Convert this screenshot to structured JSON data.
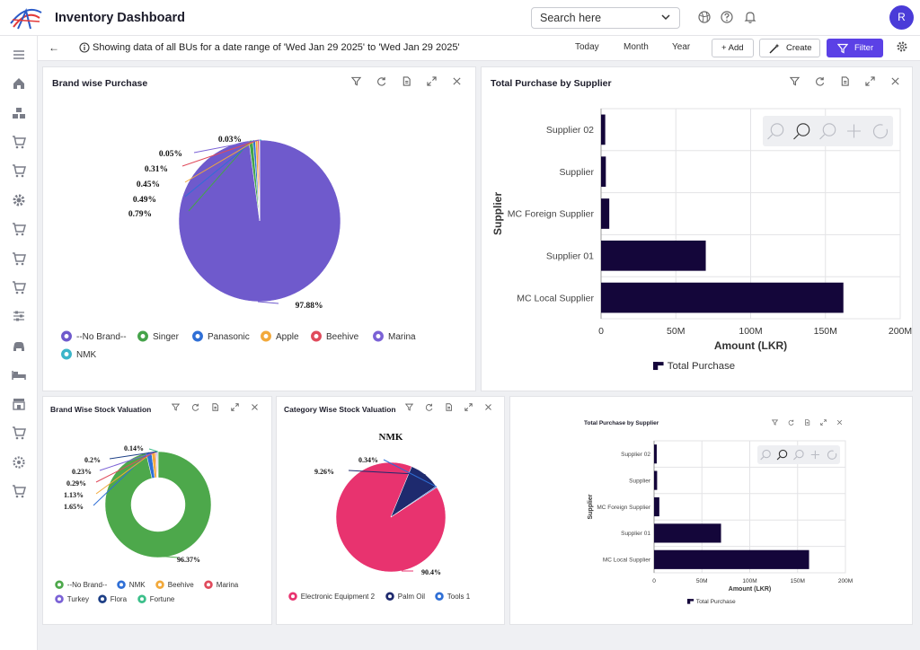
{
  "app": {
    "title": "Inventory Dashboard"
  },
  "header": {
    "search_placeholder": "Search here",
    "avatar_initial": "R"
  },
  "subbar": {
    "info": "Showing data of all BUs for a date range of 'Wed Jan 29 2025' to 'Wed Jan 29 2025'",
    "ranges": [
      "Today",
      "Month",
      "Year"
    ],
    "add_label": "+ Add",
    "create_label": "Create",
    "filter_label": "Filter"
  },
  "panels": {
    "brand_purchase": {
      "title": "Brand wise Purchase"
    },
    "supplier_purchase": {
      "title": "Total Purchase by Supplier"
    },
    "brand_stock": {
      "title": "Brand Wise Stock Valuation"
    },
    "category_stock": {
      "title": "Category Wise Stock Valuation"
    },
    "supplier_purchase_small": {
      "title": "Total Purchase by Supplier"
    }
  },
  "chart_data": [
    {
      "id": "brand_purchase",
      "type": "pie",
      "title": "Brand wise Purchase",
      "labels": [
        "--No Brand--",
        "Singer",
        "Panasonic",
        "Apple",
        "Beehive",
        "Marina",
        "NMK"
      ],
      "values": [
        97.88,
        0.79,
        0.49,
        0.45,
        0.31,
        0.05,
        0.03
      ],
      "data_labels": [
        "97.88%",
        "0.79%",
        "0.49%",
        "0.45%",
        "0.31%",
        "0.05%",
        "0.03%"
      ],
      "colors": [
        "#6f5acc",
        "#45a34a",
        "#2f6fd6",
        "#f2a93b",
        "#e04b5c",
        "#7b62d6",
        "#3bb5c9"
      ],
      "legend_position": "bottom"
    },
    {
      "id": "supplier_purchase",
      "type": "bar",
      "orientation": "horizontal",
      "title": "Total Purchase by Supplier",
      "categories": [
        "Supplier 02",
        "Supplier",
        "MC Foreign Supplier",
        "Supplier 01",
        "MC Local Supplier"
      ],
      "series": [
        {
          "name": "Total Purchase",
          "values": [
            2800000,
            3200000,
            5500000,
            70000000,
            162000000
          ]
        }
      ],
      "xlabel": "Amount (LKR)",
      "ylabel": "Supplier",
      "xlim": [
        0,
        200000000
      ],
      "xticks": [
        "0",
        "50M",
        "100M",
        "150M",
        "200M"
      ],
      "color": "#14063a",
      "grid": true,
      "legend_position": "bottom"
    },
    {
      "id": "brand_stock",
      "type": "pie",
      "subtype": "donut",
      "title": "Brand Wise Stock Valuation",
      "labels": [
        "--No Brand--",
        "NMK",
        "Beehive",
        "Marina",
        "Turkey",
        "Flora",
        "Fortune"
      ],
      "values": [
        96.37,
        1.65,
        1.13,
        0.29,
        0.23,
        0.2,
        0.14
      ],
      "data_labels": [
        "96.37%",
        "1.65%",
        "1.13%",
        "0.29%",
        "0.23%",
        "0.2%",
        "0.14%"
      ],
      "colors": [
        "#4da84b",
        "#2f6fd6",
        "#f2a93b",
        "#e04b5c",
        "#7b62d6",
        "#1d3f86",
        "#3cbf8a"
      ],
      "legend_position": "bottom"
    },
    {
      "id": "category_stock",
      "type": "pie",
      "title": "Category Wise Stock Valuation",
      "subtitle": "NMK",
      "labels": [
        "Electronic Equipment 2",
        "Palm Oil",
        "Tools 1"
      ],
      "values": [
        90.4,
        9.26,
        0.34
      ],
      "data_labels": [
        "90.4%",
        "9.26%",
        "0.34%"
      ],
      "colors": [
        "#e8336f",
        "#1e2a6e",
        "#2f6fd6"
      ],
      "legend_position": "bottom"
    },
    {
      "id": "supplier_purchase_small",
      "type": "bar",
      "orientation": "horizontal",
      "title": "Total Purchase by Supplier",
      "categories": [
        "Supplier 02",
        "Supplier",
        "MC Foreign Supplier",
        "Supplier 01",
        "MC Local Supplier"
      ],
      "series": [
        {
          "name": "Total Purchase",
          "values": [
            2800000,
            3200000,
            5500000,
            70000000,
            162000000
          ]
        }
      ],
      "xlabel": "Amount (LKR)",
      "ylabel": "Supplier",
      "xlim": [
        0,
        200000000
      ],
      "xticks": [
        "0",
        "50M",
        "100M",
        "150M",
        "200M"
      ],
      "color": "#14063a",
      "grid": true,
      "legend_position": "bottom"
    }
  ]
}
